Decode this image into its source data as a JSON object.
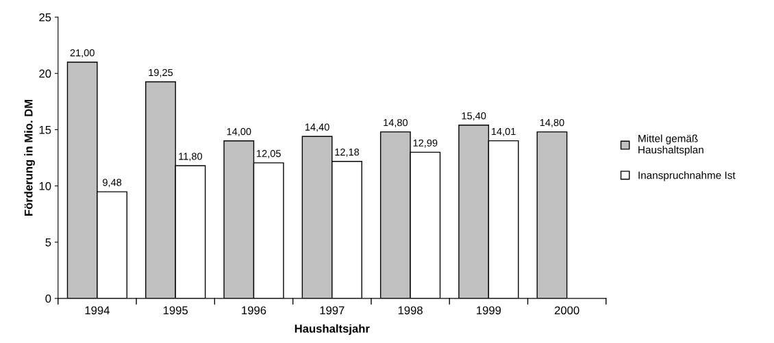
{
  "chart_data": {
    "type": "bar",
    "xlabel": "Haushaltsjahr",
    "ylabel": "Förderung in Mio. DM",
    "categories": [
      "1994",
      "1995",
      "1996",
      "1997",
      "1998",
      "1999",
      "2000"
    ],
    "series": [
      {
        "name": "Mittel gemäß\nHaushaltsplan",
        "color": "#c0c0c0",
        "values": [
          21.0,
          19.25,
          14.0,
          14.4,
          14.8,
          15.4,
          14.8
        ],
        "value_labels": [
          "21,00",
          "19,25",
          "14,00",
          "14,40",
          "14,80",
          "15,40",
          "14,80"
        ]
      },
      {
        "name": "Inanspruchnahme Ist",
        "color": "#ffffff",
        "values": [
          9.48,
          11.8,
          12.05,
          12.18,
          12.99,
          14.01,
          null
        ],
        "value_labels": [
          "9,48",
          "11,80",
          "12,05",
          "12,18",
          "12,99",
          "14,01",
          null
        ]
      }
    ],
    "ylim": [
      0,
      25
    ],
    "yticks": [
      0,
      5,
      10,
      15,
      20,
      25
    ],
    "grid": false,
    "legend": "right"
  }
}
